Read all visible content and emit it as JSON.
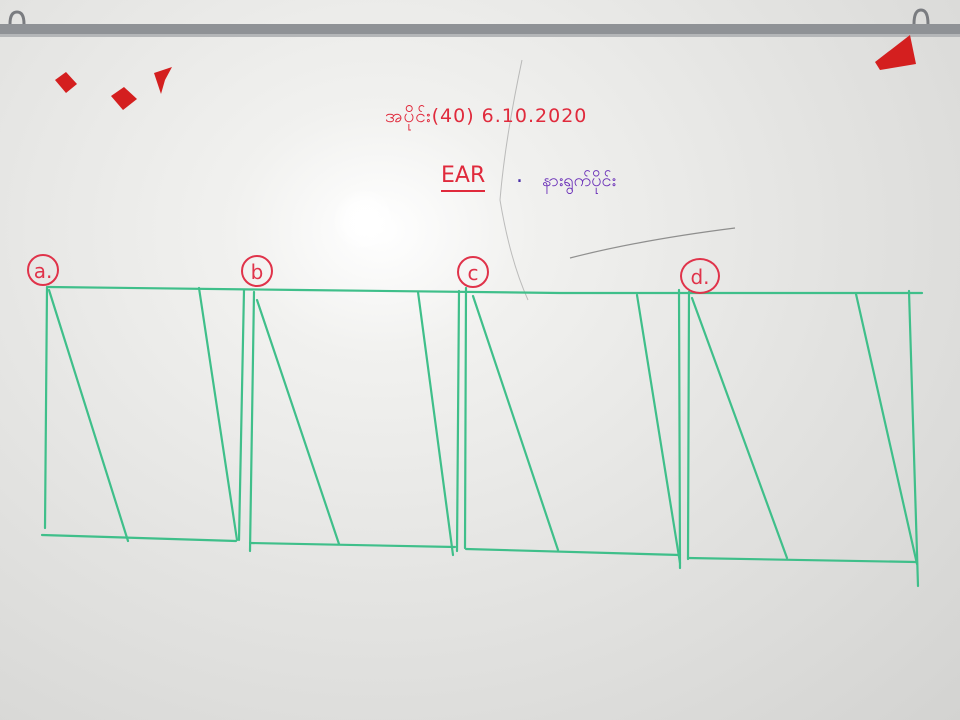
{
  "board": {
    "header_line": "အပိုင်း(40) 6.10.2020",
    "subject": "EAR",
    "subject_separator": ".",
    "subject_note": "နားရွက်ပိုင်း",
    "labels": [
      "a.",
      "b",
      "c",
      "d."
    ]
  },
  "colors": {
    "red_marker": "#e02a3c",
    "purple_marker": "#6a2fb8",
    "green_marker": "#3fbf8a",
    "rail": "#8f9296",
    "red_tape": "#d41f1f"
  }
}
